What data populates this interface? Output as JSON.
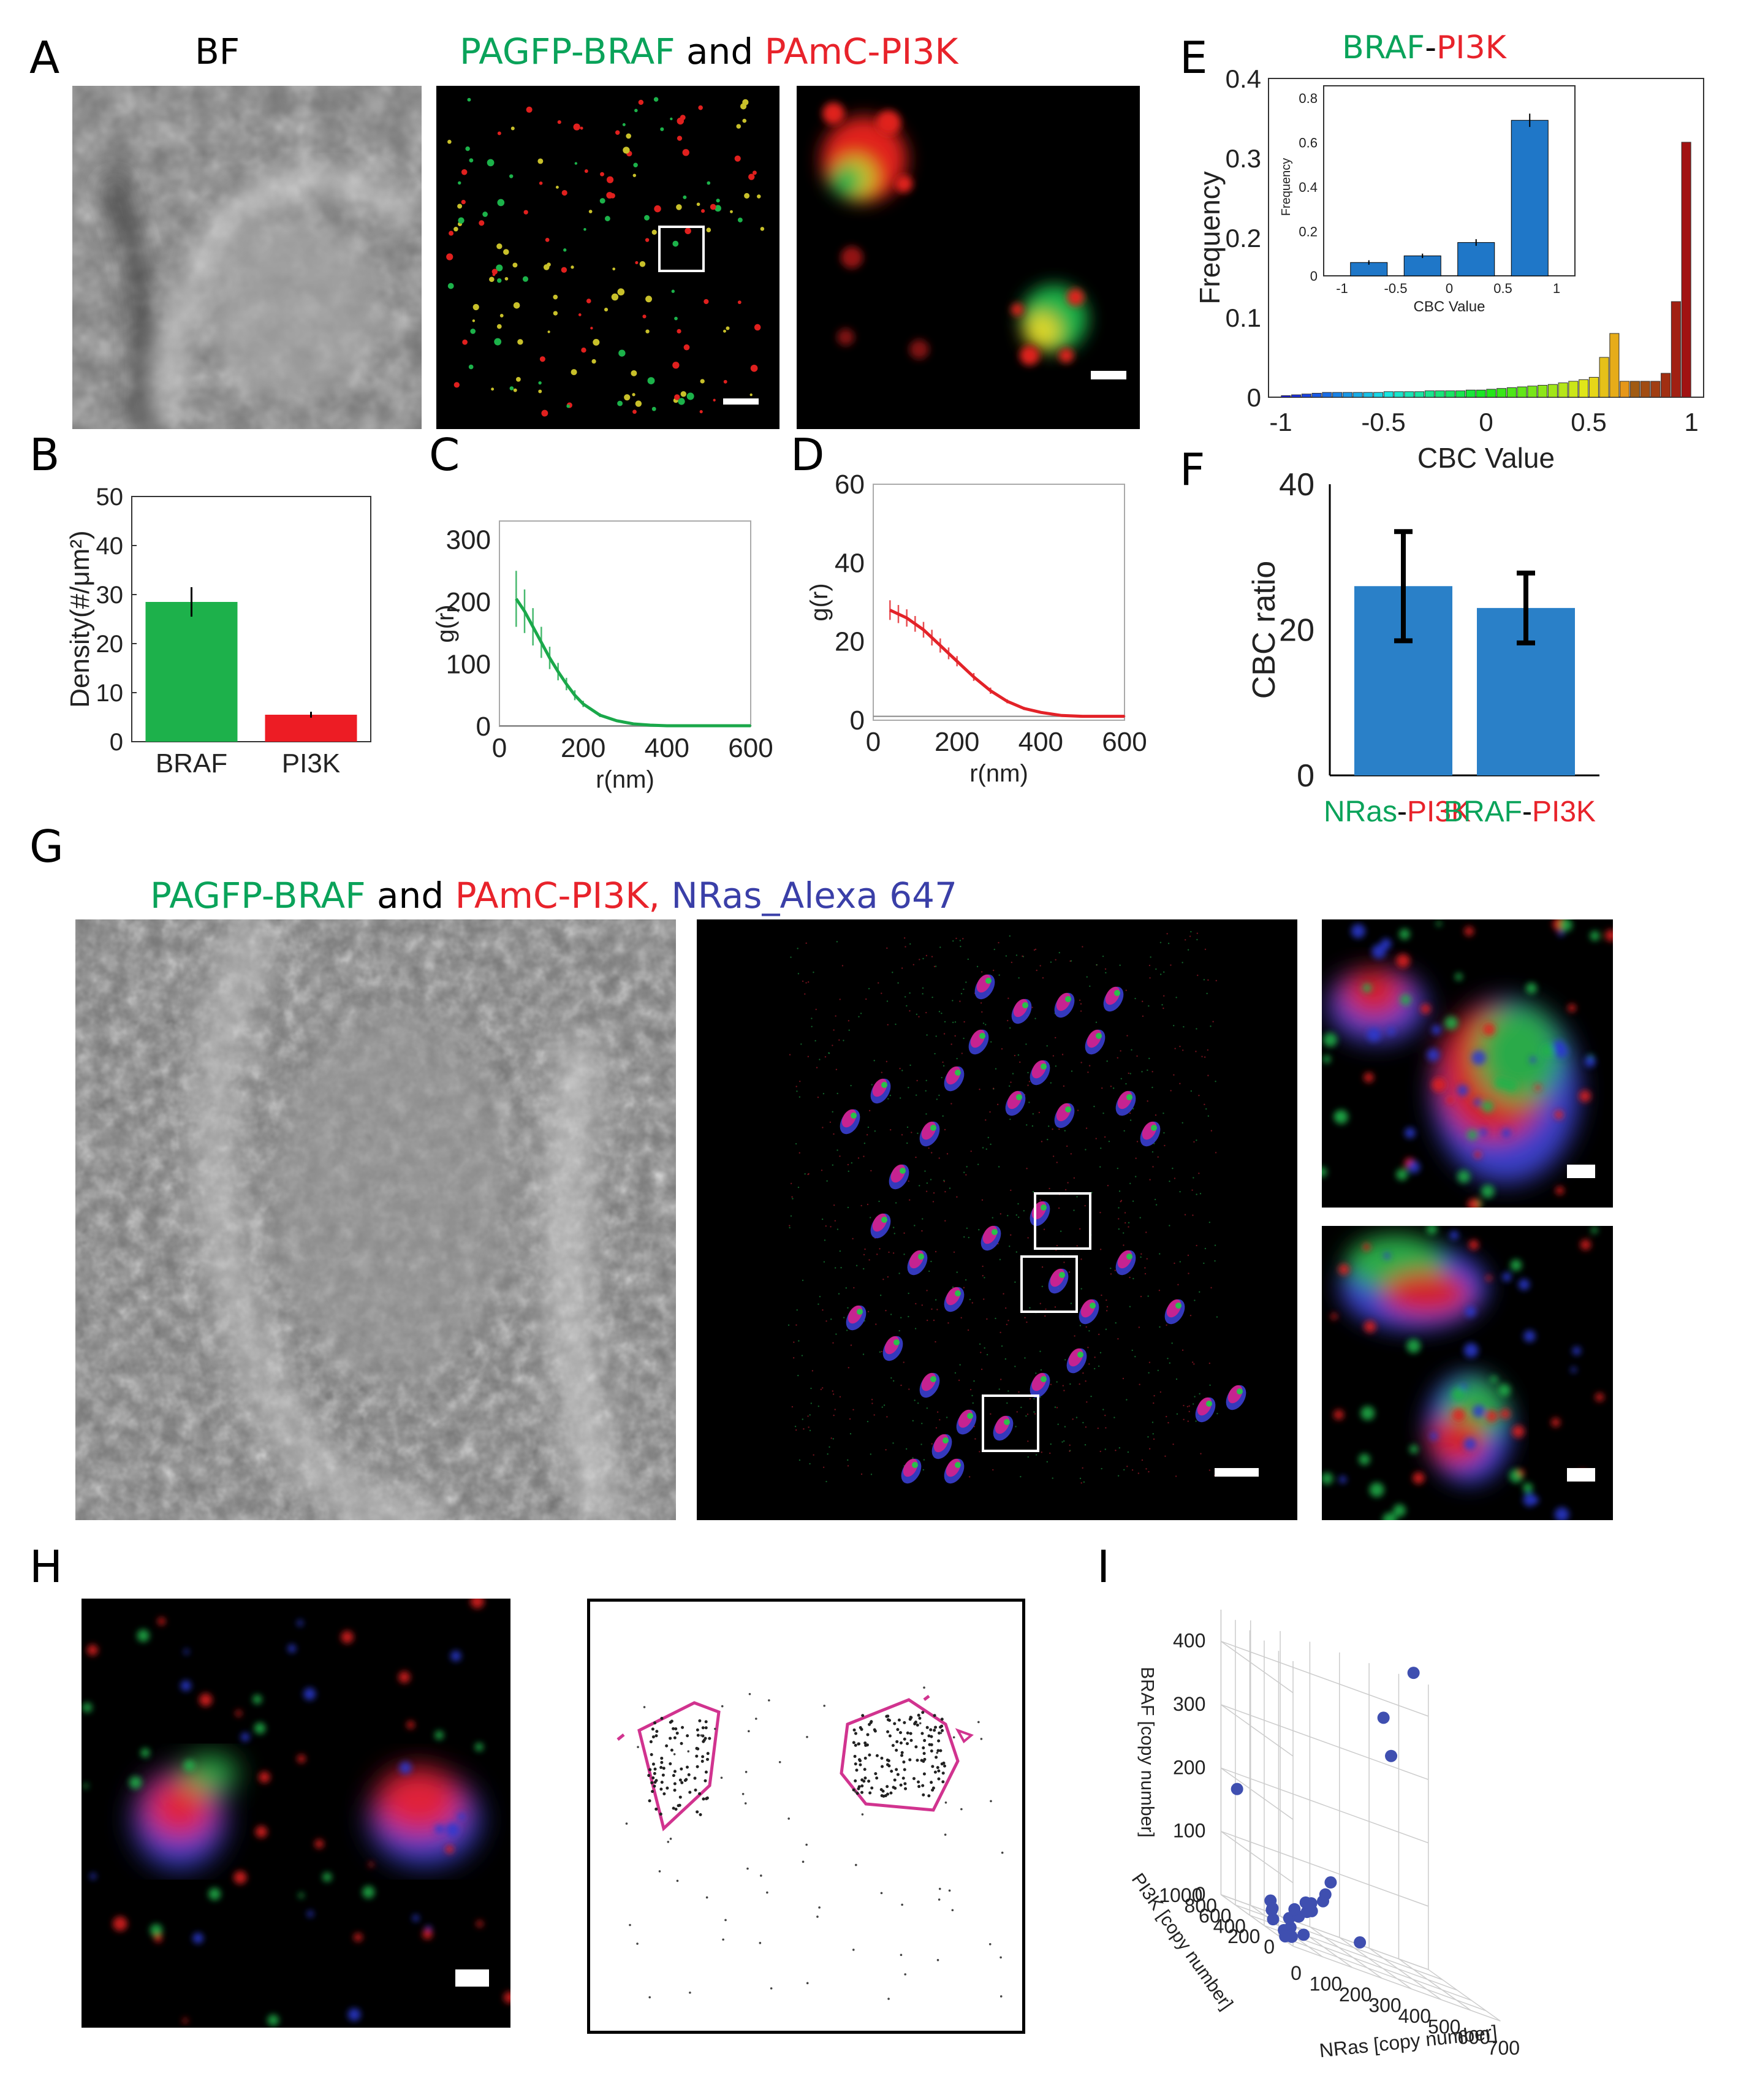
{
  "panels": {
    "A": {
      "label": "A",
      "bf_title": "BF",
      "title_parts": [
        {
          "text": "PAGFP-BRAF",
          "color": "#0aa35a"
        },
        {
          "text": " and ",
          "color": "#000000"
        },
        {
          "text": "PAmC-PI3K",
          "color": "#e8232b"
        }
      ]
    },
    "B": {
      "label": "B"
    },
    "C": {
      "label": "C"
    },
    "D": {
      "label": "D"
    },
    "E": {
      "label": "E",
      "title_parts": [
        {
          "text": "BRAF",
          "color": "#0aa35a"
        },
        {
          "text": "-",
          "color": "#000000"
        },
        {
          "text": "PI3K",
          "color": "#e8232b"
        }
      ]
    },
    "F": {
      "label": "F"
    },
    "G": {
      "label": "G",
      "title_parts": [
        {
          "text": "PAGFP-BRAF",
          "color": "#0aa35a"
        },
        {
          "text": " and ",
          "color": "#000000"
        },
        {
          "text": "PAmC-PI3K,",
          "color": "#e8232b"
        },
        {
          "text": " NRas_Alexa 647",
          "color": "#3a3fa8"
        }
      ]
    },
    "H": {
      "label": "H"
    },
    "I": {
      "label": "I"
    }
  },
  "chart_data": [
    {
      "id": "B",
      "type": "bar",
      "categories": [
        "BRAF",
        "PI3K"
      ],
      "values": [
        28.5,
        5.5
      ],
      "errors": [
        3,
        0.6
      ],
      "colors": [
        "#1db14b",
        "#ed1c24"
      ],
      "ylabel": "Density(#/μm²)",
      "ylim": [
        0,
        50
      ],
      "yticks": [
        0,
        10,
        20,
        30,
        40,
        50
      ]
    },
    {
      "id": "C",
      "type": "line",
      "xlabel": "r(nm)",
      "ylabel": "g(r)",
      "xlim": [
        0,
        600
      ],
      "ylim": [
        0,
        330
      ],
      "xticks": [
        0,
        200,
        400,
        600
      ],
      "yticks": [
        0,
        100,
        200,
        300
      ],
      "color": "#1aa84a",
      "x": [
        40,
        60,
        80,
        100,
        120,
        140,
        160,
        180,
        200,
        240,
        280,
        320,
        360,
        400,
        450,
        500,
        550,
        600
      ],
      "y": [
        205,
        185,
        160,
        135,
        110,
        88,
        68,
        50,
        36,
        18,
        9,
        4,
        2,
        1,
        1,
        1,
        1,
        1
      ],
      "err": [
        45,
        35,
        30,
        25,
        18,
        14,
        10,
        8,
        5,
        3,
        2,
        1,
        1,
        1,
        1,
        1,
        1,
        1
      ]
    },
    {
      "id": "D",
      "type": "line",
      "xlabel": "r(nm)",
      "ylabel": "g(r)",
      "xlim": [
        0,
        600
      ],
      "ylim": [
        0,
        60
      ],
      "xticks": [
        0,
        200,
        400,
        600
      ],
      "yticks": [
        0,
        20,
        40,
        60
      ],
      "color": "#e32228",
      "x": [
        40,
        60,
        80,
        100,
        120,
        140,
        160,
        180,
        200,
        240,
        280,
        320,
        360,
        400,
        450,
        500,
        550,
        600
      ],
      "y": [
        28,
        27,
        26,
        24.5,
        23,
        21,
        19,
        17,
        15,
        11,
        7.5,
        4.8,
        3,
        2,
        1.2,
        1,
        1,
        1
      ],
      "err": [
        2.5,
        2.3,
        2.2,
        2,
        2,
        2,
        1.8,
        1.5,
        1.3,
        1,
        0.8,
        0.5,
        0.4,
        0.3,
        0.2,
        0.2,
        0.2,
        0.2
      ]
    },
    {
      "id": "E",
      "type": "bar",
      "xlabel": "CBC Value",
      "ylabel": "Frequency",
      "xlim": [
        -1,
        1
      ],
      "ylim": [
        0,
        0.4
      ],
      "xticks": [
        -1,
        -0.5,
        0,
        0.5,
        1
      ],
      "yticks": [
        0,
        0.1,
        0.2,
        0.3,
        0.4
      ],
      "bins": [
        -0.975,
        -0.925,
        -0.875,
        -0.825,
        -0.775,
        -0.725,
        -0.675,
        -0.625,
        -0.575,
        -0.525,
        -0.475,
        -0.425,
        -0.375,
        -0.325,
        -0.275,
        -0.225,
        -0.175,
        -0.125,
        -0.075,
        -0.025,
        0.025,
        0.075,
        0.125,
        0.175,
        0.225,
        0.275,
        0.325,
        0.375,
        0.425,
        0.475,
        0.525,
        0.575,
        0.625,
        0.675,
        0.725,
        0.775,
        0.825,
        0.875,
        0.925,
        0.975
      ],
      "values": [
        0.002,
        0.003,
        0.004,
        0.005,
        0.006,
        0.006,
        0.006,
        0.006,
        0.006,
        0.006,
        0.007,
        0.007,
        0.007,
        0.007,
        0.008,
        0.008,
        0.008,
        0.008,
        0.009,
        0.009,
        0.01,
        0.011,
        0.012,
        0.013,
        0.014,
        0.015,
        0.016,
        0.018,
        0.02,
        0.022,
        0.025,
        0.05,
        0.08,
        0.02,
        0.02,
        0.02,
        0.02,
        0.03,
        0.12,
        0.32
      ],
      "inset": {
        "type": "bar",
        "xlabel": "CBC Value",
        "ylabel": "Frequency",
        "categories": [
          -0.75,
          -0.25,
          0.25,
          0.75
        ],
        "values": [
          0.06,
          0.09,
          0.15,
          0.7
        ],
        "errors": [
          0.01,
          0.01,
          0.015,
          0.03
        ],
        "ylim": [
          0,
          0.8
        ],
        "yticks": [
          0,
          0.2,
          0.4,
          0.6,
          0.8
        ],
        "xticks": [
          -1,
          -0.5,
          0,
          0.5,
          1
        ],
        "color": "#1f77c8"
      }
    },
    {
      "id": "F",
      "type": "bar",
      "ylabel": "CBC ratio",
      "ylim": [
        0,
        40
      ],
      "yticks": [
        0,
        20,
        40
      ],
      "color": "#2a80c8",
      "values": [
        26,
        23
      ],
      "errors": [
        7.5,
        4.8
      ],
      "category_parts": [
        [
          {
            "text": "NRas",
            "color": "#0aa35a"
          },
          {
            "text": "-",
            "color": "#000000"
          },
          {
            "text": "PI3K",
            "color": "#e8232b"
          }
        ],
        [
          {
            "text": "BRAF",
            "color": "#0aa35a"
          },
          {
            "text": "-",
            "color": "#000000"
          },
          {
            "text": "PI3K",
            "color": "#e8232b"
          }
        ]
      ]
    },
    {
      "id": "I",
      "type": "scatter",
      "xlabel": "NRas [copy number]",
      "ylabel": "PI3K [copy number]",
      "zlabel": "BRAF [copy number]",
      "xticks": [
        0,
        100,
        200,
        300,
        400,
        500,
        600,
        700
      ],
      "yticks": [
        0,
        200,
        400,
        600,
        800,
        1000
      ],
      "zticks": [
        0,
        100,
        200,
        300,
        400
      ],
      "color": "#3f4fb0",
      "points": [
        [
          20,
          100,
          10
        ],
        [
          40,
          200,
          20
        ],
        [
          60,
          300,
          30
        ],
        [
          30,
          400,
          15
        ],
        [
          80,
          250,
          40
        ],
        [
          100,
          150,
          60
        ],
        [
          120,
          300,
          50
        ],
        [
          50,
          500,
          25
        ],
        [
          150,
          200,
          80
        ],
        [
          70,
          600,
          35
        ],
        [
          200,
          300,
          110
        ],
        [
          90,
          350,
          45
        ],
        [
          60,
          100,
          20
        ],
        [
          30,
          250,
          10
        ],
        [
          10,
          150,
          5
        ],
        [
          40,
          450,
          30
        ],
        [
          110,
          200,
          70
        ],
        [
          140,
          400,
          60
        ],
        [
          170,
          250,
          90
        ],
        [
          250,
          100,
          40
        ],
        [
          30,
          900,
          180
        ],
        [
          500,
          800,
          380
        ],
        [
          550,
          900,
          320
        ],
        [
          650,
          1000,
          460
        ]
      ]
    }
  ]
}
